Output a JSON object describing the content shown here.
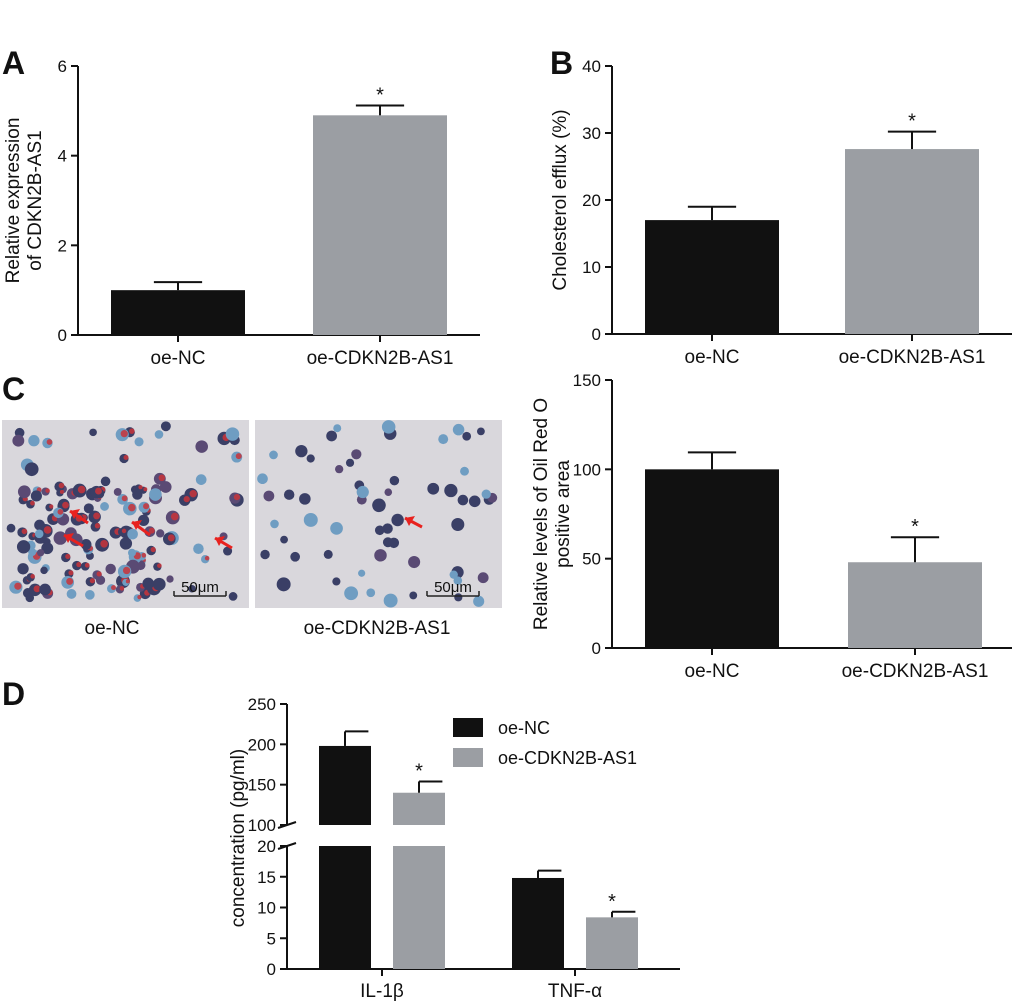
{
  "colors": {
    "ctrl": "#111111",
    "treat": "#9b9ea3",
    "axis": "#111111",
    "arrow": "#e8221f",
    "micro_bg": "#d9d7dc"
  },
  "panel_labels": {
    "A": "A",
    "B": "B",
    "C": "C",
    "D": "D"
  },
  "micrographs": {
    "left": {
      "caption": "oe-NC",
      "scale_label": "50μm"
    },
    "right": {
      "caption": "oe-CDKN2B-AS1",
      "scale_label": "50μm"
    }
  },
  "chart_data": [
    {
      "id": "A",
      "type": "bar",
      "categories": [
        "oe-NC",
        "oe-CDKN2B-AS1"
      ],
      "values": [
        1.0,
        4.9
      ],
      "errors": [
        0.18,
        0.22
      ],
      "significance": [
        "",
        "*"
      ],
      "ylabel": "Relative expression\nof CDKN2B-AS1",
      "ylim": [
        0,
        6
      ],
      "yticks": [
        0,
        2,
        4,
        6
      ]
    },
    {
      "id": "B",
      "type": "bar",
      "categories": [
        "oe-NC",
        "oe-CDKN2B-AS1"
      ],
      "values": [
        17.0,
        27.6
      ],
      "errors": [
        2.0,
        2.6
      ],
      "significance": [
        "",
        "*"
      ],
      "ylabel": "Cholesterol efflux (%)",
      "ylim": [
        0,
        40
      ],
      "yticks": [
        0,
        10,
        20,
        30,
        40
      ]
    },
    {
      "id": "C",
      "type": "bar",
      "categories": [
        "oe-NC",
        "oe-CDKN2B-AS1"
      ],
      "values": [
        100,
        48
      ],
      "errors": [
        9.5,
        14
      ],
      "significance": [
        "",
        "*"
      ],
      "ylabel": "Relative levels of Oil Red O\npositive area",
      "ylim": [
        0,
        150
      ],
      "yticks": [
        0,
        50,
        100,
        150
      ]
    },
    {
      "id": "D",
      "type": "bar",
      "categories": [
        "IL-1β",
        "TNF-α"
      ],
      "series": [
        {
          "name": "oe-NC",
          "values": [
            198,
            14.8
          ],
          "errors": [
            18,
            1.2
          ],
          "significance": [
            "",
            ""
          ]
        },
        {
          "name": "oe-CDKN2B-AS1",
          "values": [
            140,
            8.4
          ],
          "errors": [
            14,
            0.9
          ],
          "significance": [
            "*",
            "*"
          ]
        }
      ],
      "ylabel": "concentration (pg/ml)",
      "yaxis_break": [
        20,
        100
      ],
      "ylim": [
        0,
        250
      ],
      "yticks_lower": [
        0,
        5,
        10,
        15,
        20
      ],
      "yticks_upper": [
        100,
        150,
        200,
        250
      ],
      "legend": [
        "oe-NC",
        "oe-CDKN2B-AS1"
      ]
    }
  ]
}
